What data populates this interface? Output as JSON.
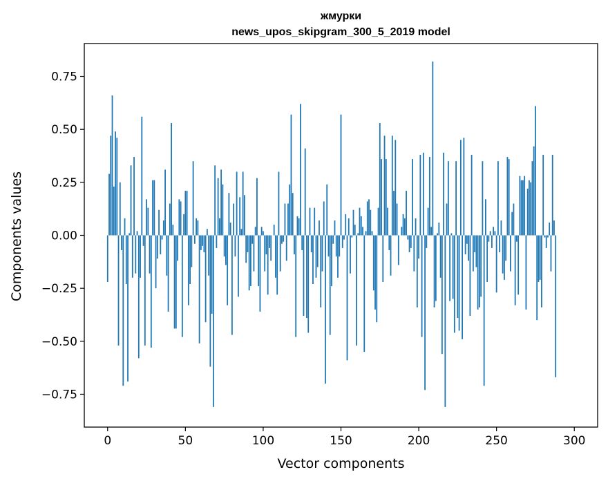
{
  "chart_data": {
    "type": "bar",
    "title": "жмурки",
    "subtitle": "news_upos_skipgram_300_5_2019 model",
    "xlabel": "Vector components",
    "ylabel": "Components values",
    "xlim": [
      -15,
      315
    ],
    "ylim": [
      -0.905,
      0.905
    ],
    "xticks": [
      0,
      50,
      100,
      150,
      200,
      250,
      300
    ],
    "xtick_labels": [
      "0",
      "50",
      "100",
      "150",
      "200",
      "250",
      "300"
    ],
    "yticks": [
      -0.75,
      -0.5,
      -0.25,
      0.0,
      0.25,
      0.5,
      0.75
    ],
    "ytick_labels": [
      "−0.75",
      "−0.50",
      "−0.25",
      "0.00",
      "0.25",
      "0.50",
      "0.75"
    ],
    "bar_color": "#1f77b4",
    "grid": false,
    "values": [
      -0.22,
      0.29,
      0.47,
      0.66,
      0.23,
      0.49,
      0.46,
      -0.52,
      0.25,
      -0.07,
      -0.71,
      0.08,
      -0.23,
      -0.69,
      0.01,
      0.33,
      -0.2,
      0.37,
      -0.18,
      0.02,
      -0.58,
      -0.2,
      0.56,
      -0.05,
      -0.52,
      0.17,
      0.13,
      -0.18,
      -0.53,
      0.26,
      0.26,
      -0.25,
      -0.11,
      0.12,
      -0.09,
      -0.02,
      0.07,
      0.31,
      -0.19,
      -0.36,
      0.15,
      0.53,
      0.05,
      -0.44,
      -0.44,
      -0.12,
      0.17,
      0.16,
      -0.48,
      0.1,
      0.21,
      0.21,
      -0.33,
      -0.23,
      -0.15,
      0.35,
      -0.04,
      0.08,
      0.07,
      -0.51,
      -0.07,
      -0.05,
      -0.08,
      -0.41,
      0.03,
      -0.19,
      -0.62,
      -0.37,
      -0.81,
      0.33,
      -0.06,
      0.27,
      0.08,
      0.31,
      0.24,
      -0.1,
      -0.14,
      -0.33,
      0.2,
      0.06,
      -0.47,
      0.15,
      -0.1,
      0.3,
      -0.29,
      0.18,
      0.03,
      0.3,
      0.19,
      -0.13,
      -0.08,
      -0.26,
      -0.24,
      -0.04,
      -0.17,
      0.04,
      0.27,
      -0.24,
      -0.36,
      0.04,
      0.02,
      -0.17,
      -0.09,
      -0.28,
      -0.06,
      -0.12,
      0.0,
      0.05,
      -0.2,
      -0.28,
      0.3,
      -0.17,
      -0.04,
      -0.03,
      0.15,
      -0.12,
      0.15,
      0.24,
      0.57,
      0.2,
      -0.09,
      -0.48,
      0.09,
      0.08,
      0.62,
      -0.07,
      -0.38,
      0.41,
      -0.39,
      -0.46,
      0.13,
      -0.08,
      -0.23,
      0.13,
      -0.2,
      -0.15,
      0.07,
      -0.34,
      -0.17,
      0.16,
      -0.7,
      0.24,
      -0.1,
      -0.47,
      -0.24,
      -0.04,
      0.07,
      -0.1,
      -0.2,
      -0.1,
      0.57,
      -0.06,
      -0.02,
      0.1,
      -0.59,
      0.08,
      -0.18,
      -0.01,
      0.12,
      0.05,
      -0.52,
      0.01,
      0.13,
      0.09,
      0.04,
      -0.55,
      0.02,
      0.16,
      0.17,
      0.12,
      0.02,
      -0.26,
      -0.35,
      -0.41,
      0.13,
      0.53,
      0.36,
      -0.22,
      0.47,
      0.36,
      0.13,
      -0.07,
      -0.19,
      0.47,
      0.21,
      0.45,
      0.15,
      -0.14,
      0.0,
      0.04,
      0.1,
      0.08,
      0.21,
      -0.02,
      -0.08,
      -0.06,
      0.36,
      -0.17,
      0.08,
      -0.34,
      -0.11,
      0.38,
      -0.48,
      0.39,
      -0.73,
      -0.06,
      0.13,
      0.37,
      0.04,
      0.82,
      -0.34,
      -0.31,
      0.01,
      0.06,
      -0.2,
      -0.56,
      0.39,
      -0.81,
      0.15,
      0.35,
      -0.31,
      0.01,
      -0.3,
      -0.46,
      0.35,
      -0.39,
      -0.45,
      0.45,
      -0.49,
      0.46,
      -0.09,
      -0.04,
      -0.12,
      -0.38,
      0.38,
      -0.17,
      -0.08,
      -0.15,
      -0.35,
      -0.34,
      -0.29,
      0.35,
      -0.71,
      0.17,
      -0.22,
      -0.03,
      0.02,
      -0.06,
      0.04,
      0.02,
      -0.27,
      0.35,
      -0.08,
      0.07,
      -0.18,
      -0.21,
      -0.12,
      0.37,
      0.36,
      -0.17,
      0.11,
      0.15,
      -0.33,
      -0.03,
      -0.28,
      0.28,
      0.26,
      0.26,
      0.28,
      -0.35,
      0.22,
      0.26,
      0.25,
      0.35,
      0.42,
      0.61,
      -0.4,
      -0.22,
      -0.21,
      -0.34,
      0.38,
      -0.01,
      -0.06,
      -0.01,
      0.06,
      -0.17,
      0.38,
      0.07,
      -0.67,
      0.0
    ]
  }
}
